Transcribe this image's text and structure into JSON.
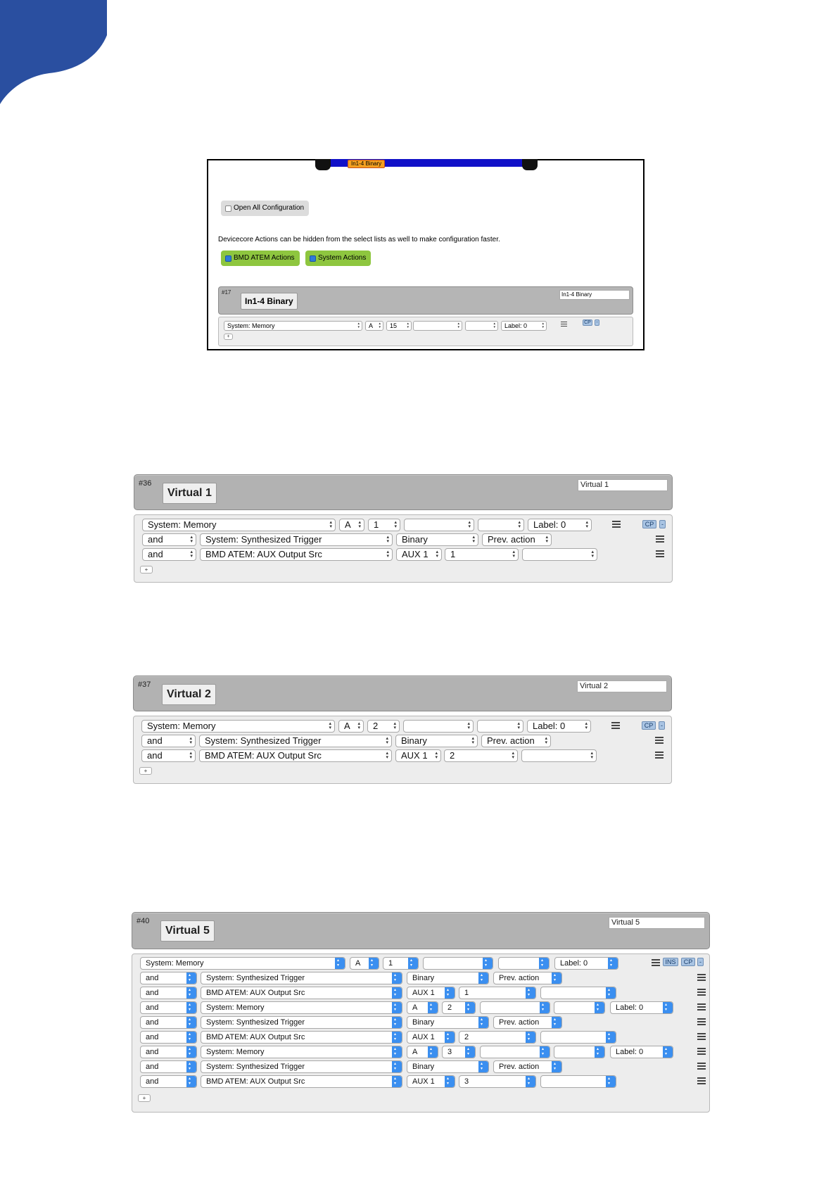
{
  "colors": {
    "brand": "#2a4fa0",
    "tab_bar": "#1010c8",
    "green_toggle": "#8ec63f",
    "header": "#b2b2b2",
    "select_arrow": "#3b8ff0"
  },
  "screenshot1": {
    "tab_label": "In1-4 Binary",
    "open_all_label": "Open All Configuration",
    "note": "Devicecore Actions can be hidden from the select lists as well to make configuration faster.",
    "toggles": [
      "BMD ATEM Actions",
      "System Actions"
    ],
    "group": {
      "number": "#17",
      "title": "In1-4 Binary",
      "name_value": "In1-4 Binary",
      "row": [
        "System: Memory",
        "A",
        "15",
        "",
        "",
        "Label: 0"
      ],
      "cp": "CP",
      "minus": "-",
      "plus": "+"
    }
  },
  "groups": [
    {
      "number": "#36",
      "title": "Virtual 1",
      "name_value": "Virtual 1",
      "rows": [
        [
          "System: Memory",
          "A",
          "1",
          "",
          "",
          "Label: 0"
        ],
        [
          "and",
          "System: Synthesized Trigger",
          "Binary",
          "Prev. action"
        ],
        [
          "and",
          "BMD ATEM: AUX Output Src",
          "AUX 1",
          "1",
          ""
        ]
      ],
      "cp": "CP",
      "minus": "-",
      "plus": "+"
    },
    {
      "number": "#37",
      "title": "Virtual 2",
      "name_value": "Virtual 2",
      "rows": [
        [
          "System: Memory",
          "A",
          "2",
          "",
          "",
          "Label: 0"
        ],
        [
          "and",
          "System: Synthesized Trigger",
          "Binary",
          "Prev. action"
        ],
        [
          "and",
          "BMD ATEM: AUX Output Src",
          "AUX 1",
          "2",
          ""
        ]
      ],
      "cp": "CP",
      "minus": "-",
      "plus": "+"
    },
    {
      "number": "#40",
      "title": "Virtual 5",
      "name_value": "Virtual 5",
      "rows": [
        [
          "System: Memory",
          "A",
          "1",
          "",
          "",
          "Label: 0"
        ],
        [
          "and",
          "System: Synthesized Trigger",
          "Binary",
          "Prev. action"
        ],
        [
          "and",
          "BMD ATEM: AUX Output Src",
          "AUX 1",
          "1",
          ""
        ],
        [
          "and",
          "System: Memory",
          "A",
          "2",
          "",
          "",
          "Label: 0"
        ],
        [
          "and",
          "System: Synthesized Trigger",
          "Binary",
          "Prev. action"
        ],
        [
          "and",
          "BMD ATEM: AUX Output Src",
          "AUX 1",
          "2",
          ""
        ],
        [
          "and",
          "System: Memory",
          "A",
          "3",
          "",
          "",
          "Label: 0"
        ],
        [
          "and",
          "System: Synthesized Trigger",
          "Binary",
          "Prev. action"
        ],
        [
          "and",
          "BMD ATEM: AUX Output Src",
          "AUX 1",
          "3",
          ""
        ]
      ],
      "ins": "INS",
      "cp": "CP",
      "minus": "-",
      "plus": "+"
    }
  ]
}
